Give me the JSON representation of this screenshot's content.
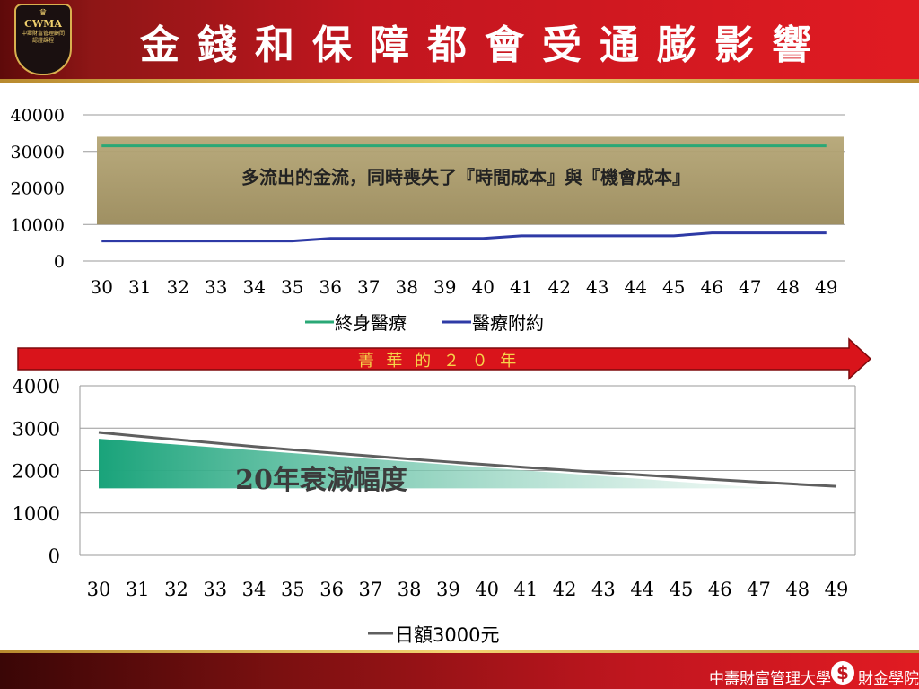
{
  "header": {
    "title": "金錢和保障都會受通膨影響",
    "logo": {
      "name": "CWMA",
      "subtitle": "中壽財富管理顧問認證課程"
    }
  },
  "arrow": {
    "label": "菁 華 的 ２ ０ 年",
    "color": "#d9141b"
  },
  "footer": {
    "left": "中壽財富管理大學",
    "right": "財金學院",
    "coin_symbol": "$"
  },
  "chart_data": [
    {
      "type": "line",
      "x": [
        30,
        31,
        32,
        33,
        34,
        35,
        36,
        37,
        38,
        39,
        40,
        41,
        42,
        43,
        44,
        45,
        46,
        47,
        48,
        49
      ],
      "ylim": [
        0,
        40000
      ],
      "yticks": [
        0,
        10000,
        20000,
        30000,
        40000
      ],
      "ytick_labels": [
        "0",
        "10000",
        "20000",
        "30000",
        "40000"
      ],
      "grid": true,
      "legend": "bottom",
      "series": [
        {
          "name": "終身醫療",
          "color": "#2aa876",
          "values": [
            31500,
            31500,
            31500,
            31500,
            31500,
            31500,
            31500,
            31500,
            31500,
            31500,
            31500,
            31500,
            31500,
            31500,
            31500,
            31500,
            31500,
            31500,
            31500,
            31500
          ]
        },
        {
          "name": "醫療附約",
          "color": "#2e3aa6",
          "values": [
            5500,
            5500,
            5500,
            5500,
            5500,
            5500,
            6200,
            6200,
            6200,
            6200,
            6200,
            6900,
            6900,
            6900,
            6900,
            6900,
            7700,
            7700,
            7700,
            7700
          ]
        }
      ],
      "annotation": {
        "text": "多流出的金流，同時喪失了『時間成本』與『機會成本』",
        "band_from": 10000,
        "band_to": 34000,
        "band_color": "#9a8a5a"
      }
    },
    {
      "type": "line",
      "x": [
        30,
        31,
        32,
        33,
        34,
        35,
        36,
        37,
        38,
        39,
        40,
        41,
        42,
        43,
        44,
        45,
        46,
        47,
        48,
        49
      ],
      "ylim": [
        0,
        4000
      ],
      "yticks": [
        0,
        1000,
        2000,
        3000,
        4000
      ],
      "ytick_labels": [
        "0",
        "1000",
        "2000",
        "3000",
        "4000"
      ],
      "grid": true,
      "legend": "bottom",
      "series": [
        {
          "name": "日額3000元",
          "color": "#5f5f5f",
          "values": [
            2900,
            2813,
            2729,
            2647,
            2567,
            2490,
            2416,
            2343,
            2273,
            2205,
            2139,
            2075,
            2012,
            1952,
            1893,
            1837,
            1781,
            1728,
            1676,
            1626
          ]
        }
      ],
      "annotation": {
        "text": "20年衰減幅度",
        "from_x": 30,
        "to_x": 47,
        "top_value": 2750,
        "base_value": 1580,
        "fill_color": "#19a37a"
      }
    }
  ]
}
